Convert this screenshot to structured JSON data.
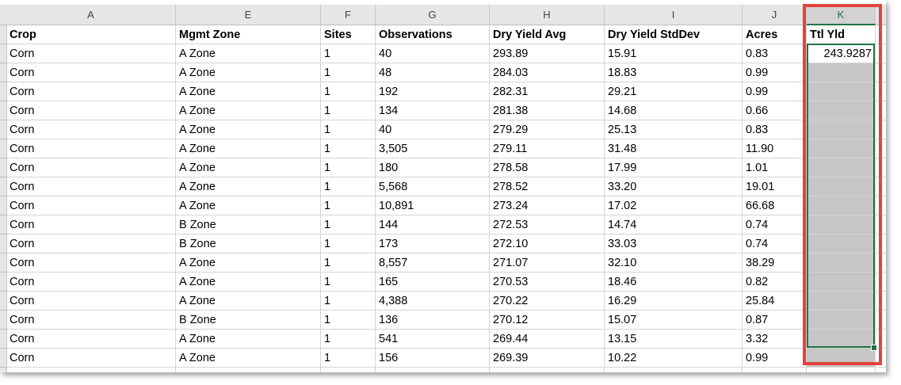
{
  "column_headers": [
    "A",
    "E",
    "F",
    "G",
    "H",
    "I",
    "J",
    "K"
  ],
  "header_row": [
    "Crop",
    "Mgmt Zone",
    "Sites",
    "Observations",
    "Dry Yield Avg",
    "Dry Yield StdDev",
    "Acres",
    "Ttl Yld"
  ],
  "rows": [
    [
      "Corn",
      "A Zone",
      "1",
      "40",
      "293.89",
      "15.91",
      "0.83",
      "243.9287"
    ],
    [
      "Corn",
      "A Zone",
      "1",
      "48",
      "284.03",
      "18.83",
      "0.99"
    ],
    [
      "Corn",
      "A Zone",
      "1",
      "192",
      "282.31",
      "29.21",
      "0.99"
    ],
    [
      "Corn",
      "A Zone",
      "1",
      "134",
      "281.38",
      "14.68",
      "0.66"
    ],
    [
      "Corn",
      "A Zone",
      "1",
      "40",
      "279.29",
      "25.13",
      "0.83"
    ],
    [
      "Corn",
      "A Zone",
      "1",
      "3,505",
      "279.11",
      "31.48",
      "11.90"
    ],
    [
      "Corn",
      "A Zone",
      "1",
      "180",
      "278.58",
      "17.99",
      "1.01"
    ],
    [
      "Corn",
      "A Zone",
      "1",
      "5,568",
      "278.52",
      "33.20",
      "19.01"
    ],
    [
      "Corn",
      "A Zone",
      "1",
      "10,891",
      "273.24",
      "17.02",
      "66.68"
    ],
    [
      "Corn",
      "B Zone",
      "1",
      "144",
      "272.53",
      "14.74",
      "0.74"
    ],
    [
      "Corn",
      "B Zone",
      "1",
      "173",
      "272.10",
      "33.03",
      "0.74"
    ],
    [
      "Corn",
      "A Zone",
      "1",
      "8,557",
      "271.07",
      "32.10",
      "38.29"
    ],
    [
      "Corn",
      "A Zone",
      "1",
      "165",
      "270.53",
      "18.46",
      "0.82"
    ],
    [
      "Corn",
      "A Zone",
      "1",
      "4,388",
      "270.22",
      "16.29",
      "25.84"
    ],
    [
      "Corn",
      "B Zone",
      "1",
      "136",
      "270.12",
      "15.07",
      "0.87"
    ],
    [
      "Corn",
      "A Zone",
      "1",
      "541",
      "269.44",
      "13.15",
      "3.32"
    ],
    [
      "Corn",
      "A Zone",
      "1",
      "156",
      "269.39",
      "10.22",
      "0.99"
    ]
  ]
}
